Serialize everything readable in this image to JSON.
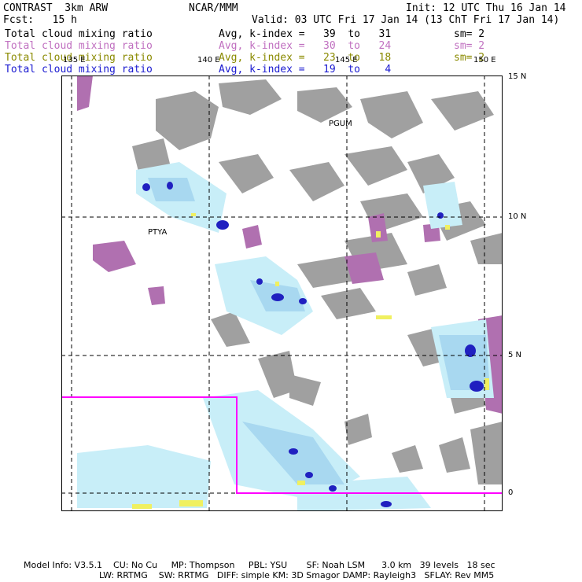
{
  "header": {
    "model": "CONTRAST  3km ARW",
    "org": "NCAR/MMM",
    "init": "Init: 12 UTC Thu 16 Jan 14",
    "fcst": "Fcst:   15 h",
    "valid": "Valid: 03 UTC Fri 17 Jan 14 (13 ChT Fri 17 Jan 14)"
  },
  "fields": [
    {
      "name": "Total cloud mixing ratio",
      "range": "Avg, k-index =   39  to   31",
      "smooth": "sm= 2",
      "color": "#000000"
    },
    {
      "name": "Total cloud mixing ratio",
      "range": "Avg, k-index =   30  to   24",
      "smooth": "sm= 2",
      "color": "#c070c0"
    },
    {
      "name": "Total cloud mixing ratio",
      "range": "Avg, k-index =   23  to   18",
      "smooth": "sm= 2",
      "color": "#8a8a00"
    },
    {
      "name": "Total cloud mixing ratio",
      "range": "Avg, k-index =   19  to    4",
      "smooth": "",
      "color": "#1a1ad0"
    }
  ],
  "map": {
    "lon_labels": [
      "135 E",
      "140 E",
      "145 E",
      "150 E"
    ],
    "lat_labels": [
      "15 N",
      "10 N",
      "5 N",
      "0"
    ],
    "stations": [
      "PGUM",
      "PTYA"
    ],
    "colors": {
      "land": "#a0a0a0",
      "pink": "#b070b0",
      "cyan": "#c8eef8",
      "lightblue": "#a8d8f0",
      "blue": "#2020c0",
      "yellow": "#f0f060",
      "box": "#ff00ff"
    }
  },
  "footer": {
    "line1": "Model Info: V3.5.1    CU: No Cu     MP: Thompson     PBL: YSU       SF: Noah LSM      3.0 km   39 levels   18 sec",
    "line2": "LW: RRTMG    SW: RRTMG   DIFF: simple KM: 3D Smagor DAMP: Rayleigh3   SFLAY: Rev MM5"
  }
}
